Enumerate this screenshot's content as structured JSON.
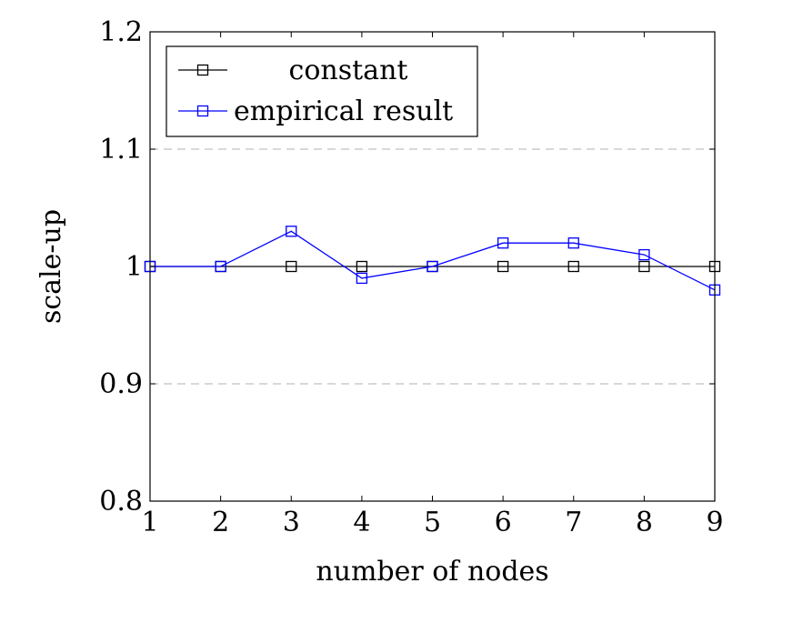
{
  "chart_data": {
    "type": "line",
    "xlabel": "number of nodes",
    "ylabel": "scale-up",
    "xlim": [
      1,
      9
    ],
    "ylim": [
      0.8,
      1.2
    ],
    "xticks": [
      1,
      2,
      3,
      4,
      5,
      6,
      7,
      8,
      9
    ],
    "yticks": [
      0.8,
      0.9,
      1,
      1.1,
      1.2
    ],
    "ytick_labels": [
      "0.8",
      "0.9",
      "1",
      "1.1",
      "1.2"
    ],
    "grid": "horizontal dashed at 0.9 and 1.1",
    "legend_position": "top-left",
    "series": [
      {
        "name": "constant",
        "color": "#000000",
        "marker": "square",
        "x": [
          1,
          2,
          3,
          4,
          5,
          6,
          7,
          8,
          9
        ],
        "y": [
          1,
          1,
          1,
          1,
          1,
          1,
          1,
          1,
          1
        ]
      },
      {
        "name": "empirical result",
        "color": "#0000ff",
        "marker": "square",
        "x": [
          1,
          2,
          3,
          4,
          5,
          6,
          7,
          8,
          9
        ],
        "y": [
          1.0,
          1.0,
          1.03,
          0.99,
          1.0,
          1.02,
          1.02,
          1.01,
          0.98
        ]
      }
    ]
  }
}
